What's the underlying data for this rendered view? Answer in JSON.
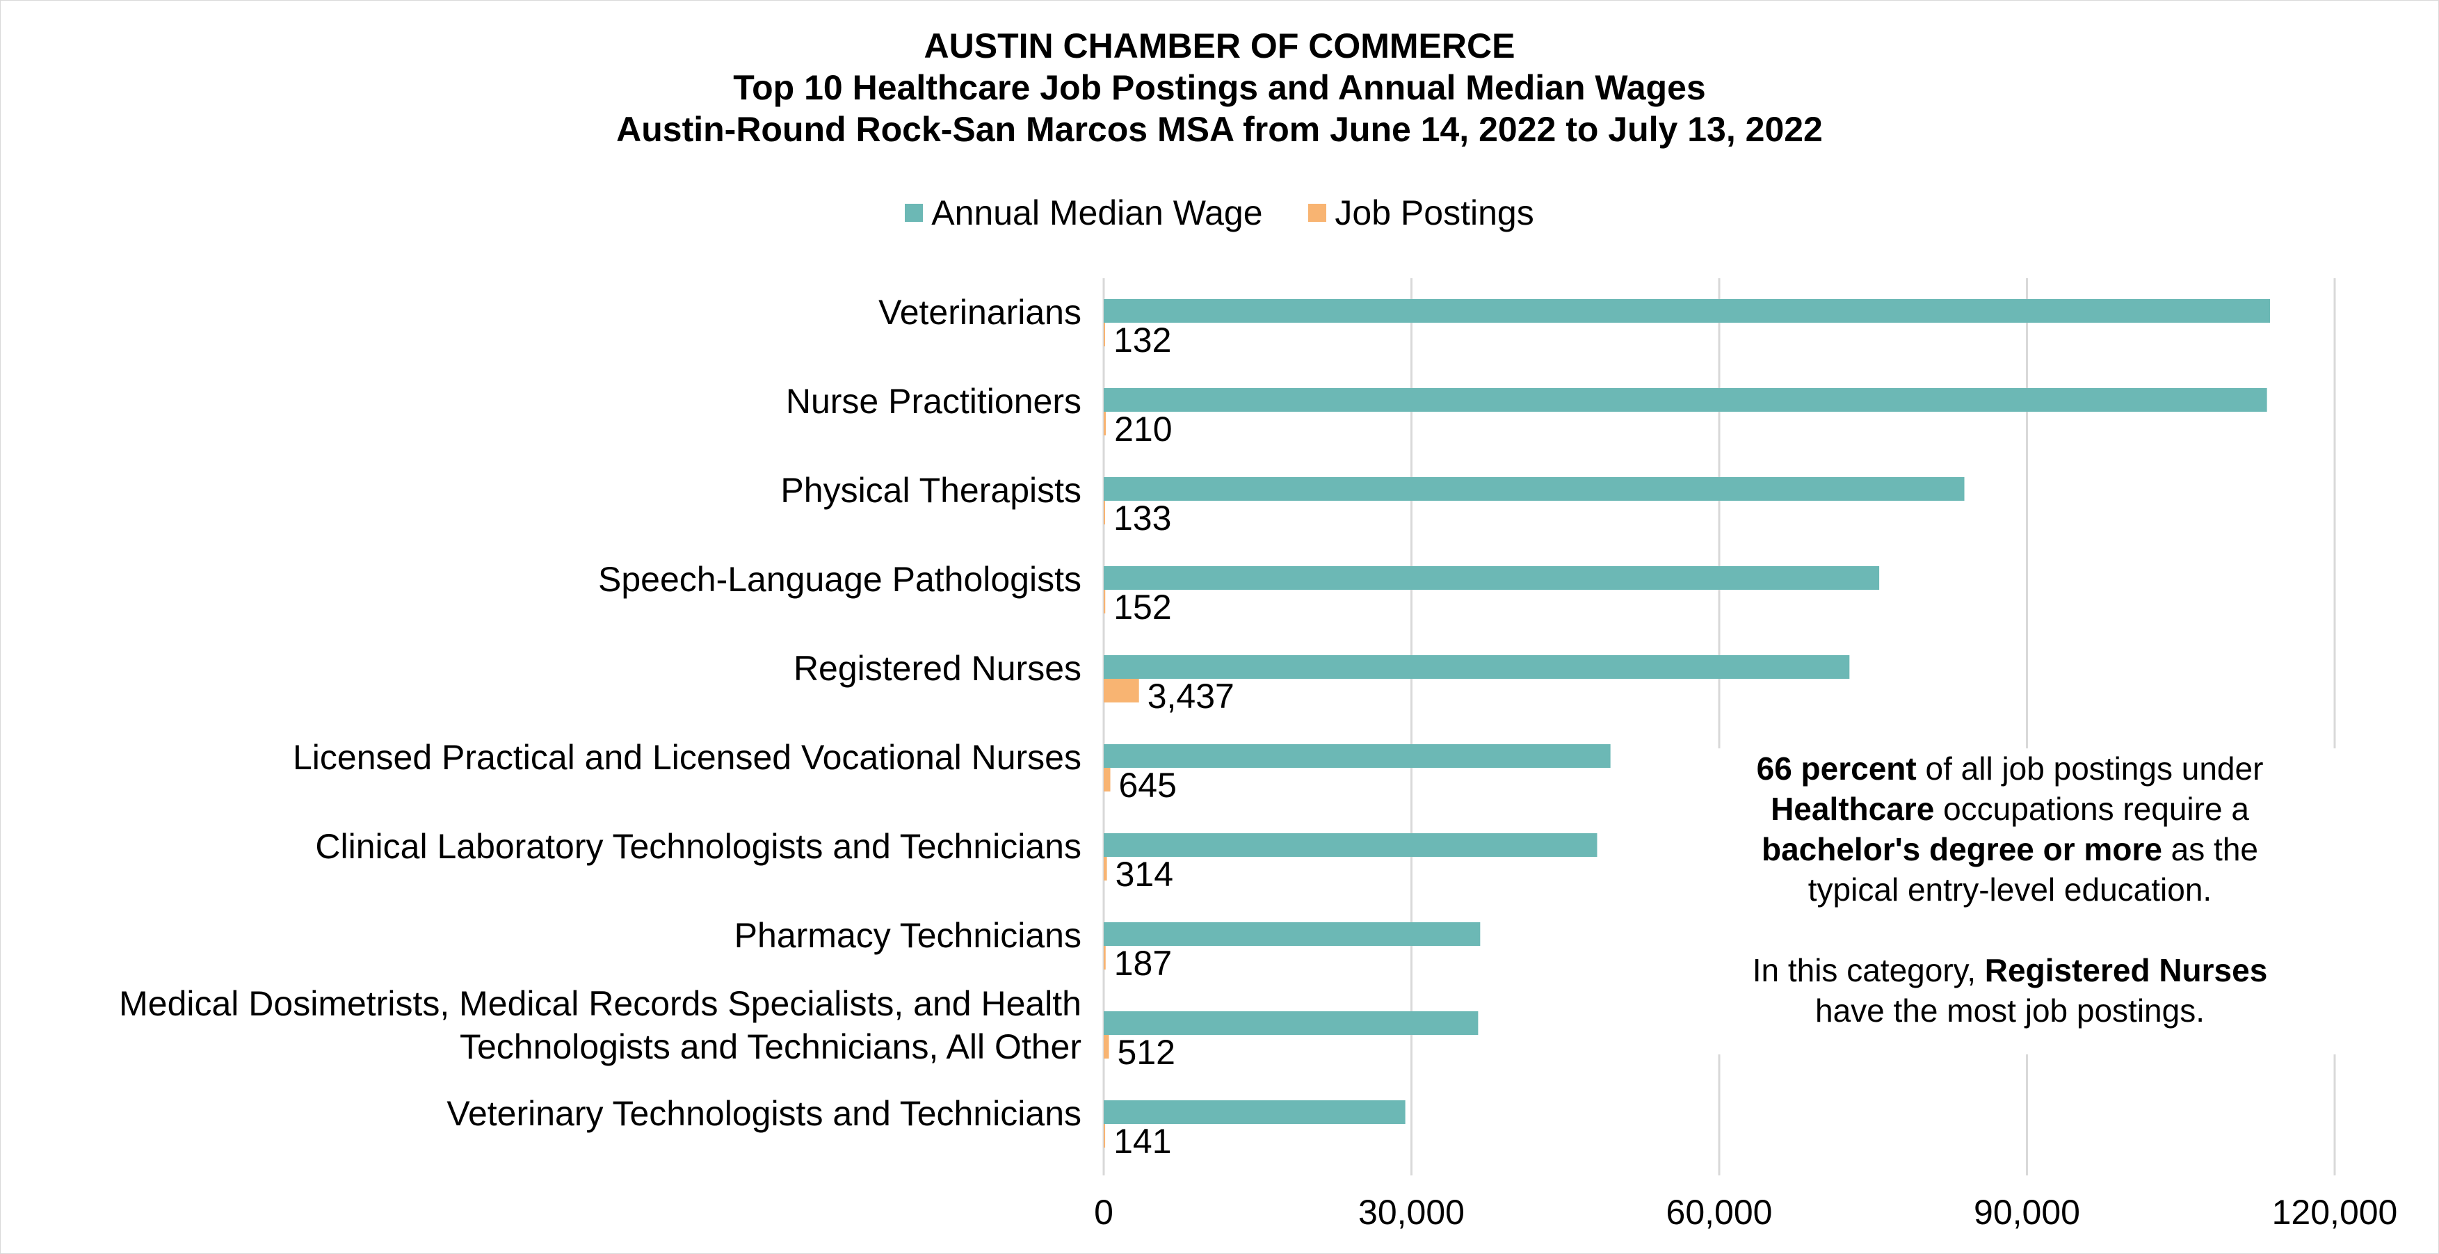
{
  "chart_data": {
    "type": "bar",
    "orientation": "horizontal",
    "title": "AUSTIN CHAMBER OF COMMERCE",
    "subtitle": [
      "Top 10 Healthcare Job Postings and Annual Median Wages",
      "Austin-Round Rock-San Marcos MSA from June 14, 2022 to July 13, 2022"
    ],
    "categories": [
      [
        "Veterinarians"
      ],
      [
        "Nurse Practitioners"
      ],
      [
        "Physical Therapists"
      ],
      [
        "Speech-Language Pathologists"
      ],
      [
        "Registered Nurses"
      ],
      [
        "Licensed Practical and Licensed Vocational Nurses"
      ],
      [
        "Clinical Laboratory Technologists and Technicians"
      ],
      [
        "Pharmacy Technicians"
      ],
      [
        "Medical Dosimetrists, Medical Records Specialists, and Health",
        "Technologists and Technicians, All Other"
      ],
      [
        "Veterinary Technologists and Technicians"
      ]
    ],
    "series": [
      {
        "name": "Annual Median Wage",
        "color": "#6cb8b5",
        "values": [
          113700,
          113400,
          83900,
          75600,
          72700,
          49400,
          48100,
          36700,
          36500,
          29400
        ]
      },
      {
        "name": "Job Postings",
        "color": "#f8b472",
        "values": [
          132,
          210,
          133,
          152,
          3437,
          645,
          314,
          187,
          512,
          141
        ],
        "labels": [
          "132",
          "210",
          "133",
          "152",
          "3,437",
          "645",
          "314",
          "187",
          "512",
          "141"
        ]
      }
    ],
    "xlim": [
      0,
      120000
    ],
    "xticks": [
      0,
      30000,
      60000,
      90000,
      120000
    ],
    "xtick_labels": [
      "0",
      "30,000",
      "60,000",
      "90,000",
      "120,000"
    ],
    "grid": "vertical",
    "legend": "top-center"
  },
  "note": {
    "p1": [
      {
        "text": "66 percent",
        "bold": true
      },
      {
        "text": " of all job postings under",
        "bold": false
      },
      {
        "br": true
      },
      {
        "text": "Healthcare",
        "bold": true
      },
      {
        "text": " occupations require a",
        "bold": false
      },
      {
        "br": true
      },
      {
        "text": "bachelor's degree or more",
        "bold": true
      },
      {
        "text": " as the",
        "bold": false
      },
      {
        "br": true
      },
      {
        "text": "typical entry-level education.",
        "bold": false
      }
    ],
    "p2": [
      {
        "text": "In this category, ",
        "bold": false
      },
      {
        "text": "Registered Nurses",
        "bold": true
      },
      {
        "br": true
      },
      {
        "text": "have the most job postings.",
        "bold": false
      }
    ]
  }
}
